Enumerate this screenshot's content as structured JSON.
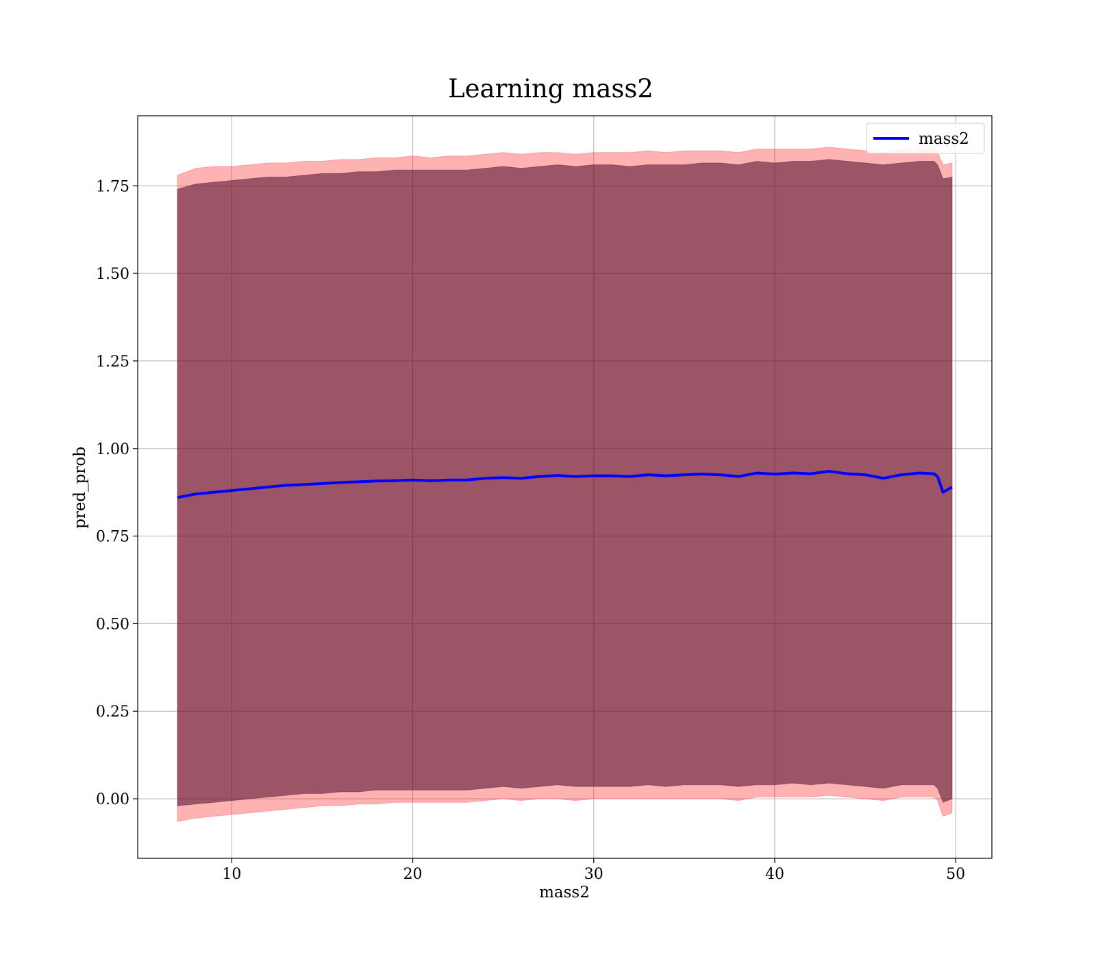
{
  "chart_data": {
    "type": "line",
    "title": "Learning mass2",
    "xlabel": "mass2",
    "ylabel": "pred_prob",
    "xlim": [
      4.8,
      52.0
    ],
    "ylim": [
      -0.17,
      1.95
    ],
    "xticks": [
      10,
      20,
      30,
      40,
      50
    ],
    "yticks": [
      0.0,
      0.25,
      0.5,
      0.75,
      1.0,
      1.25,
      1.5,
      1.75
    ],
    "xtick_labels": [
      "10",
      "20",
      "30",
      "40",
      "50"
    ],
    "ytick_labels": [
      "0.00",
      "0.25",
      "0.50",
      "0.75",
      "1.00",
      "1.25",
      "1.50",
      "1.75"
    ],
    "grid": true,
    "legend_position": "top-right",
    "series": [
      {
        "name": "mass2",
        "color": "#0000ff",
        "x": [
          7.0,
          8.0,
          9.0,
          10.0,
          11.0,
          12.0,
          13.0,
          14.0,
          15.0,
          16.0,
          17.0,
          18.0,
          19.0,
          20.0,
          21.0,
          22.0,
          23.0,
          24.0,
          25.0,
          26.0,
          27.0,
          28.0,
          29.0,
          30.0,
          31.0,
          32.0,
          33.0,
          34.0,
          35.0,
          36.0,
          37.0,
          38.0,
          39.0,
          40.0,
          41.0,
          42.0,
          43.0,
          44.0,
          45.0,
          46.0,
          47.0,
          48.0,
          48.8,
          49.0,
          49.3,
          49.8
        ],
        "y": [
          0.86,
          0.87,
          0.875,
          0.88,
          0.885,
          0.89,
          0.895,
          0.897,
          0.9,
          0.903,
          0.905,
          0.907,
          0.908,
          0.91,
          0.908,
          0.91,
          0.91,
          0.915,
          0.917,
          0.915,
          0.92,
          0.923,
          0.92,
          0.922,
          0.922,
          0.92,
          0.925,
          0.922,
          0.925,
          0.927,
          0.925,
          0.92,
          0.93,
          0.927,
          0.93,
          0.928,
          0.935,
          0.928,
          0.925,
          0.915,
          0.925,
          0.93,
          0.928,
          0.92,
          0.875,
          0.89
        ],
        "band_outer_upper": [
          1.78,
          1.8,
          1.805,
          1.805,
          1.81,
          1.815,
          1.815,
          1.82,
          1.82,
          1.825,
          1.825,
          1.83,
          1.83,
          1.835,
          1.83,
          1.835,
          1.835,
          1.84,
          1.845,
          1.84,
          1.845,
          1.845,
          1.84,
          1.845,
          1.845,
          1.845,
          1.85,
          1.845,
          1.85,
          1.85,
          1.85,
          1.845,
          1.855,
          1.855,
          1.855,
          1.855,
          1.86,
          1.855,
          1.85,
          1.845,
          1.855,
          1.855,
          1.855,
          1.845,
          1.81,
          1.815
        ],
        "band_inner_upper": [
          1.74,
          1.755,
          1.76,
          1.765,
          1.77,
          1.775,
          1.775,
          1.78,
          1.785,
          1.785,
          1.79,
          1.79,
          1.795,
          1.795,
          1.795,
          1.795,
          1.795,
          1.8,
          1.805,
          1.8,
          1.805,
          1.81,
          1.805,
          1.81,
          1.81,
          1.805,
          1.81,
          1.81,
          1.81,
          1.815,
          1.815,
          1.81,
          1.82,
          1.815,
          1.82,
          1.82,
          1.825,
          1.82,
          1.815,
          1.81,
          1.815,
          1.82,
          1.82,
          1.81,
          1.77,
          1.775
        ],
        "band_inner_lower": [
          -0.02,
          -0.015,
          -0.01,
          -0.005,
          0.0,
          0.005,
          0.01,
          0.015,
          0.015,
          0.02,
          0.02,
          0.025,
          0.025,
          0.025,
          0.025,
          0.025,
          0.025,
          0.03,
          0.035,
          0.03,
          0.035,
          0.04,
          0.035,
          0.035,
          0.035,
          0.035,
          0.04,
          0.035,
          0.04,
          0.04,
          0.04,
          0.035,
          0.04,
          0.04,
          0.045,
          0.04,
          0.045,
          0.04,
          0.035,
          0.03,
          0.04,
          0.04,
          0.04,
          0.03,
          -0.01,
          0.0
        ],
        "band_outer_lower": [
          -0.065,
          -0.055,
          -0.05,
          -0.045,
          -0.04,
          -0.035,
          -0.03,
          -0.025,
          -0.02,
          -0.02,
          -0.015,
          -0.015,
          -0.01,
          -0.01,
          -0.01,
          -0.01,
          -0.01,
          -0.005,
          0.0,
          -0.005,
          0.0,
          0.0,
          -0.005,
          0.0,
          0.0,
          0.0,
          0.0,
          0.0,
          0.0,
          0.0,
          0.0,
          -0.005,
          0.005,
          0.005,
          0.005,
          0.005,
          0.01,
          0.005,
          0.0,
          -0.005,
          0.005,
          0.005,
          0.005,
          -0.005,
          -0.05,
          -0.04
        ]
      }
    ]
  }
}
